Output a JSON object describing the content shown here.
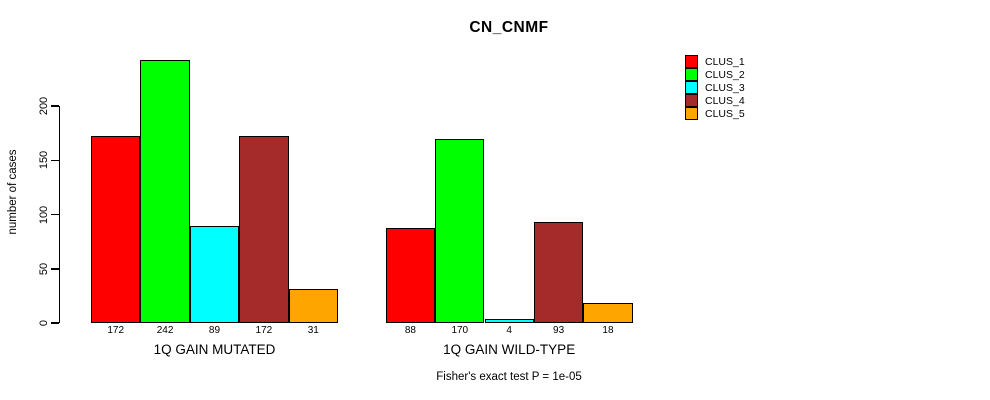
{
  "title": "CN_CNMF",
  "chart_data": {
    "type": "bar",
    "title": "CN_CNMF",
    "ylabel": "number of cases",
    "xlabel": "",
    "categories": [
      "1Q GAIN MUTATED",
      "1Q GAIN WILD-TYPE"
    ],
    "series": [
      {
        "name": "CLUS_1",
        "color": "#FF0000",
        "values": [
          172,
          88
        ]
      },
      {
        "name": "CLUS_2",
        "color": "#00FF00",
        "values": [
          242,
          170
        ]
      },
      {
        "name": "CLUS_3",
        "color": "#00FFFF",
        "values": [
          89,
          4
        ]
      },
      {
        "name": "CLUS_4",
        "color": "#A52A2A",
        "values": [
          172,
          93
        ]
      },
      {
        "name": "CLUS_5",
        "color": "#FFA500",
        "values": [
          31,
          18
        ]
      }
    ],
    "bar_value_labels": [
      [
        172,
        242,
        89,
        172,
        31
      ],
      [
        88,
        170,
        4,
        93,
        18
      ]
    ],
    "yticks": [
      0,
      50,
      100,
      150,
      200
    ],
    "ylim": [
      0,
      245
    ],
    "grid": false,
    "legend_position": "top-right",
    "bar_border_color": "#000000",
    "background_color": "#FFFFFF",
    "annotation": "Fisher's exact test P = 1e-05"
  }
}
